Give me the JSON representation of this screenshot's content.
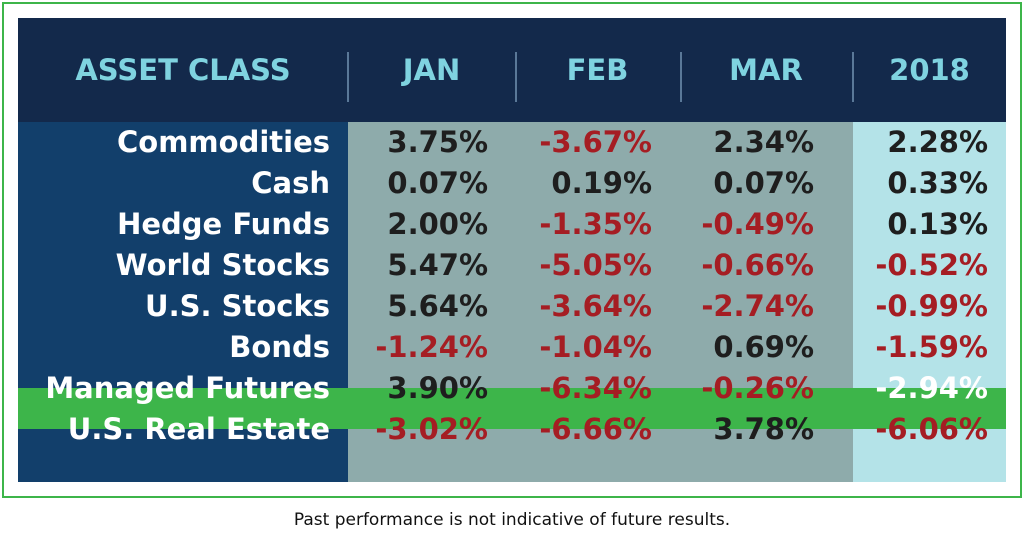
{
  "table": {
    "header": [
      "ASSET CLASS",
      "JAN",
      "FEB",
      "MAR",
      "2018"
    ],
    "rows": [
      [
        "Commodities",
        "3.75%",
        "-3.67%",
        "2.34%",
        "2.28%"
      ],
      [
        "Cash",
        "0.07%",
        "0.19%",
        "0.07%",
        "0.33%"
      ],
      [
        "Hedge Funds",
        "2.00%",
        "-1.35%",
        "-0.49%",
        "0.13%"
      ],
      [
        "World Stocks",
        "5.47%",
        "-5.05%",
        "-0.66%",
        "-0.52%"
      ],
      [
        "U.S. Stocks",
        "5.64%",
        "-3.64%",
        "-2.74%",
        "-0.99%"
      ],
      [
        "Bonds",
        "-1.24%",
        "-1.04%",
        "0.69%",
        "-1.59%"
      ],
      [
        "Managed Futures",
        "3.90%",
        "-6.34%",
        "-0.26%",
        "-2.94%"
      ],
      [
        "U.S. Real Estate",
        "-3.02%",
        "-6.66%",
        "3.78%",
        "-6.06%"
      ]
    ]
  },
  "footnote": "Past performance is not indicative of future results."
}
